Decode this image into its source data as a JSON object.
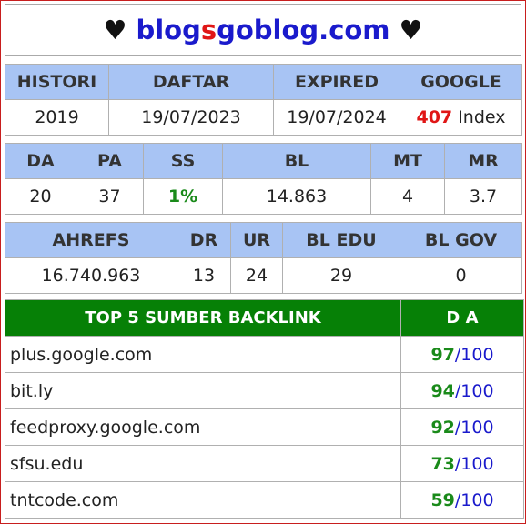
{
  "title": {
    "prefix_icon": "♥",
    "part_a": "blog",
    "part_b": "s",
    "part_c": "goblog.com",
    "suffix_icon": "♥"
  },
  "row1": {
    "headers": [
      "HISTORI",
      "DAFTAR",
      "EXPIRED",
      "GOOGLE"
    ],
    "histori": "2019",
    "daftar": "19/07/2023",
    "expired": "19/07/2024",
    "google_count": "407",
    "google_suffix": "Index"
  },
  "row2": {
    "headers": [
      "DA",
      "PA",
      "SS",
      "BL",
      "MT",
      "MR"
    ],
    "values": [
      "20",
      "37",
      "1%",
      "14.863",
      "4",
      "3.7"
    ]
  },
  "row3": {
    "headers": [
      "AHREFS",
      "DR",
      "UR",
      "BL EDU",
      "BL GOV"
    ],
    "values": [
      "16.740.963",
      "13",
      "24",
      "29",
      "0"
    ]
  },
  "backlinks": {
    "header_source": "TOP 5 SUMBER BACKLINK",
    "header_da": "D A",
    "separator": "/",
    "items": [
      {
        "site": "plus.google.com",
        "da": "97",
        "max": "100"
      },
      {
        "site": "bit.ly",
        "da": "94",
        "max": "100"
      },
      {
        "site": "feedproxy.google.com",
        "da": "92",
        "max": "100"
      },
      {
        "site": "sfsu.edu",
        "da": "73",
        "max": "100"
      },
      {
        "site": "tntcode.com",
        "da": "59",
        "max": "100"
      }
    ]
  },
  "colors": {
    "header_bg": "#a8c4f4",
    "backlink_header_bg": "#068006",
    "title_blue": "#1a1acc",
    "title_red": "#e01616",
    "value_green": "#1a8a1a",
    "frame_border": "#c81e1e"
  }
}
